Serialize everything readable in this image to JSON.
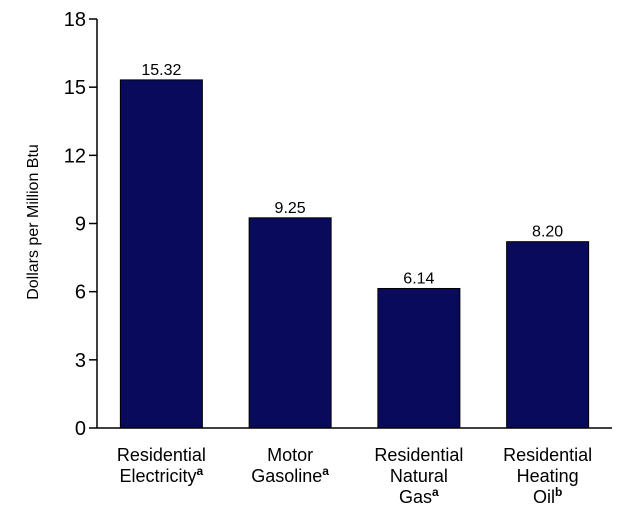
{
  "chart_data": {
    "type": "bar",
    "title": "",
    "xlabel": "",
    "ylabel": "Dollars per Million Btu",
    "ylim": [
      0,
      18
    ],
    "yticks": [
      0,
      3,
      6,
      9,
      12,
      15,
      18
    ],
    "grid": false,
    "bar_color": "#0a0a5c",
    "categories": [
      {
        "lines": [
          "Residential",
          "Electricity"
        ],
        "footnote": "a"
      },
      {
        "lines": [
          "Motor",
          "Gasoline"
        ],
        "footnote": "a"
      },
      {
        "lines": [
          "Residential",
          "Natural",
          "Gas"
        ],
        "footnote": "a"
      },
      {
        "lines": [
          "Residential",
          "Heating",
          "Oil"
        ],
        "footnote": "b"
      }
    ],
    "values": [
      15.32,
      9.25,
      6.14,
      8.2
    ],
    "value_labels": [
      "15.32",
      "9.25",
      "6.14",
      "8.20"
    ]
  }
}
